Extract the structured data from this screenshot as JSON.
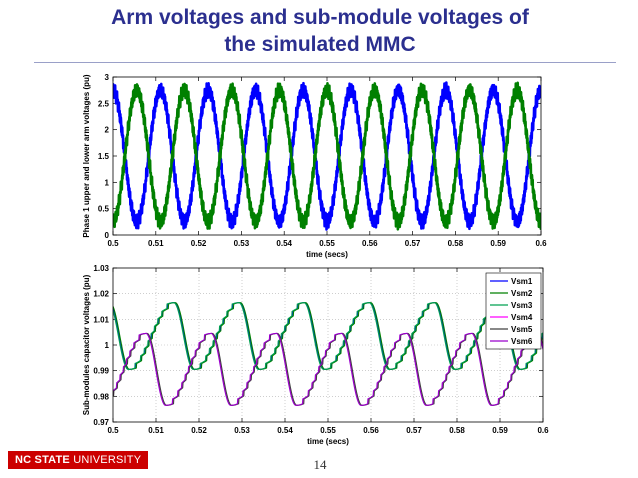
{
  "slide": {
    "title_line1": "Arm voltages and sub-module voltages of",
    "title_line2": "the simulated MMC",
    "logo_bold": "NC STATE",
    "logo_rest": " UNIVERSITY",
    "page_number": "14"
  },
  "chart_data": [
    {
      "type": "line",
      "xlabel": "time (secs)",
      "ylabel": "Phase 1 upper and lower arm voltages (pu)",
      "xlim": [
        0.5,
        0.6
      ],
      "ylim": [
        0,
        3
      ],
      "x_ticks": [
        "0.5",
        "0.51",
        "0.52",
        "0.53",
        "0.54",
        "0.55",
        "0.56",
        "0.57",
        "0.58",
        "0.59",
        "0.6"
      ],
      "y_ticks": [
        "0",
        "0.5",
        "1",
        "1.5",
        "2",
        "2.5",
        "3"
      ],
      "grid": false,
      "series": [
        {
          "color": "#0000ff",
          "shape": "sinusoid",
          "frequency_hz": 90,
          "offset": 1.5,
          "amplitude": 1.25,
          "phase_deg": 0
        },
        {
          "color": "#008000",
          "shape": "sinusoid",
          "frequency_hz": 90,
          "offset": 1.5,
          "amplitude": 1.25,
          "phase_deg": 180
        }
      ]
    },
    {
      "type": "line",
      "xlabel": "time (secs)",
      "ylabel": "Sub-modules capacitor voltages (pu)",
      "xlim": [
        0.5,
        0.6
      ],
      "ylim": [
        0.97,
        1.03
      ],
      "x_ticks": [
        "0.5",
        "0.51",
        "0.52",
        "0.53",
        "0.54",
        "0.55",
        "0.56",
        "0.57",
        "0.58",
        "0.59",
        "0.6"
      ],
      "y_ticks": [
        "0.97",
        "0.98",
        "0.99",
        "1",
        "1.01",
        "1.02",
        "1.03"
      ],
      "grid": true,
      "legend_position": "top-right",
      "series": [
        {
          "name": "Vsm1",
          "color": "#0000ff",
          "group": "green-cluster",
          "phase_deg": 0
        },
        {
          "name": "Vsm2",
          "color": "#008000",
          "group": "green-cluster",
          "phase_deg": 4
        },
        {
          "name": "Vsm3",
          "color": "#00a050",
          "group": "green-cluster",
          "phase_deg": -4
        },
        {
          "name": "Vsm4",
          "color": "#ff00ff",
          "group": "purple-cluster",
          "phase_deg": 0
        },
        {
          "name": "Vsm5",
          "color": "#404040",
          "group": "purple-cluster",
          "phase_deg": 3
        },
        {
          "name": "Vsm6",
          "color": "#9900cc",
          "group": "purple-cluster",
          "phase_deg": -3
        }
      ],
      "cluster_params": {
        "green-cluster": {
          "period": 0.01515,
          "peak": 1.0165,
          "trough": 0.9905,
          "peak_time": 0.5143
        },
        "purple-cluster": {
          "period": 0.01515,
          "peak": 1.0045,
          "trough": 0.9765,
          "peak_time": 0.5078
        }
      }
    }
  ]
}
